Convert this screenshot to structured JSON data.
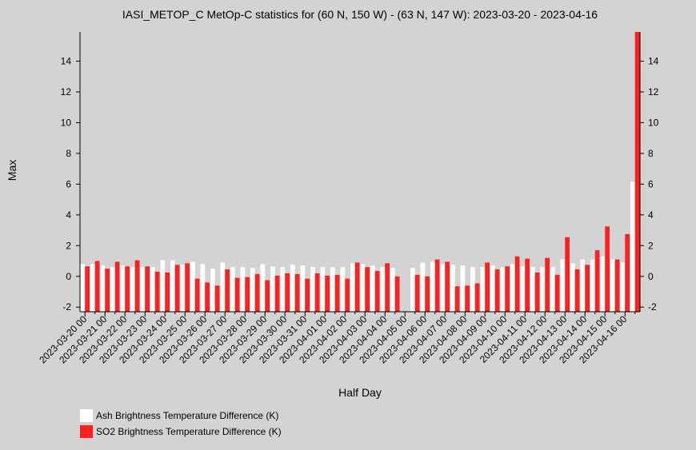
{
  "chart_data": {
    "type": "bar",
    "title": "IASI_METOP_C MetOp-C statistics for (60 N, 150 W) - (63 N, 147 W): 2023-03-20 - 2023-04-16",
    "x_label": "Half Day",
    "y_label": "Max",
    "categories": [
      "2023-03-20 00",
      null,
      "2023-03-21 00",
      null,
      "2023-03-22 00",
      null,
      "2023-03-23 00",
      null,
      "2023-03-24 00",
      null,
      "2023-03-25 00",
      null,
      "2023-03-26 00",
      null,
      "2023-03-27 00",
      null,
      "2023-03-28 00",
      null,
      "2023-03-29 00",
      null,
      "2023-03-30 00",
      null,
      "2023-03-31 00",
      null,
      "2023-04-01 00",
      null,
      "2023-04-02 00",
      null,
      "2023-04-03 00",
      null,
      "2023-04-04 00",
      null,
      "2023-04-05 00",
      null,
      "2023-04-06 00",
      null,
      "2023-04-07 00",
      null,
      "2023-04-08 00",
      null,
      "2023-04-09 00",
      null,
      "2023-04-10 00",
      null,
      "2023-04-11 00",
      null,
      "2023-04-12 00",
      null,
      "2023-04-13 00",
      null,
      "2023-04-14 00",
      null,
      "2023-04-15 00",
      null,
      "2023-04-16 00",
      null
    ],
    "series": [
      {
        "name": "Ash Brightness Temperature Difference (K)",
        "color": "#ffffff",
        "values": [
          0.8,
          0.8,
          0.7,
          0.6,
          0.7,
          0.6,
          0.6,
          0.6,
          1.05,
          1.05,
          0.75,
          0.95,
          0.8,
          0.5,
          0.9,
          0.6,
          0.6,
          0.55,
          0.8,
          0.65,
          0.6,
          0.75,
          0.7,
          0.6,
          0.6,
          0.6,
          0.6,
          0.85,
          0.8,
          0.7,
          0.6,
          0.55,
          null,
          0.55,
          0.9,
          0.95,
          0.8,
          0.75,
          0.7,
          0.6,
          0.6,
          0.7,
          0.6,
          0.8,
          0.65,
          0.6,
          0.6,
          0.6,
          1.1,
          0.85,
          1.1,
          1.1,
          1.3,
          1.1,
          0.9,
          6.15
        ]
      },
      {
        "name": "SO2 Brightness Temperature Difference (K)",
        "color": "#ff2020",
        "values": [
          0.65,
          1.0,
          0.5,
          0.95,
          0.65,
          1.05,
          0.65,
          0.3,
          0.25,
          0.75,
          0.85,
          -0.15,
          -0.4,
          -0.6,
          0.45,
          -0.1,
          -0.05,
          0.15,
          -0.25,
          0.05,
          0.2,
          0.15,
          -0.15,
          0.2,
          0.05,
          0.1,
          -0.15,
          0.9,
          0.6,
          0.35,
          0.85,
          0.0,
          null,
          0.1,
          0.0,
          1.1,
          0.95,
          -0.65,
          -0.6,
          -0.45,
          0.9,
          0.45,
          0.65,
          1.3,
          1.15,
          0.25,
          1.2,
          0.1,
          2.55,
          0.45,
          0.75,
          1.7,
          3.25,
          1.1,
          2.75,
          15.9
        ]
      }
    ],
    "ylim": [
      -2.3,
      15.9
    ],
    "yticks": [
      -2,
      0,
      2,
      4,
      6,
      8,
      10,
      12,
      14
    ]
  }
}
